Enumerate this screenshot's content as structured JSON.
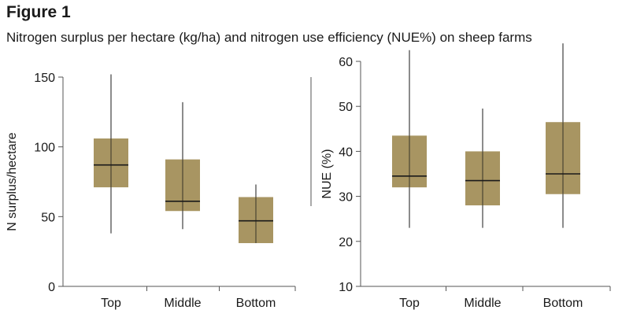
{
  "figure": {
    "title": "Figure 1",
    "subtitle": "Nitrogen surplus per hectare (kg/ha) and nitrogen use efficiency (NUE%) on sheep farms"
  },
  "colors": {
    "box": "#a89562",
    "line": "#1a1a1a",
    "axis": "#555555"
  },
  "chart_data": [
    {
      "type": "boxplot",
      "title": "",
      "xlabel": "",
      "ylabel": "N surplus/hectare",
      "ylim": [
        0,
        150
      ],
      "yticks": [
        0,
        50,
        100,
        150
      ],
      "categories": [
        "Top",
        "Middle",
        "Bottom"
      ],
      "boxes": [
        {
          "label": "Top",
          "min": 38,
          "q1": 71,
          "median": 87,
          "q3": 106,
          "max": 152
        },
        {
          "label": "Middle",
          "min": 41,
          "q1": 54,
          "median": 61,
          "q3": 91,
          "max": 132
        },
        {
          "label": "Bottom",
          "min": 31,
          "q1": 31,
          "median": 47,
          "q3": 64,
          "max": 73
        }
      ]
    },
    {
      "type": "boxplot",
      "title": "",
      "xlabel": "",
      "ylabel": "NUE (%)",
      "ylim": [
        10,
        60
      ],
      "yticks": [
        10,
        20,
        30,
        40,
        50,
        60
      ],
      "categories": [
        "Top",
        "Middle",
        "Bottom"
      ],
      "boxes": [
        {
          "label": "Top",
          "min": 23,
          "q1": 32,
          "median": 34.5,
          "q3": 43.5,
          "max": 62.5
        },
        {
          "label": "Middle",
          "min": 23,
          "q1": 28,
          "median": 33.5,
          "q3": 40,
          "max": 49.5
        },
        {
          "label": "Bottom",
          "min": 23,
          "q1": 30.5,
          "median": 35,
          "q3": 46.5,
          "max": 64
        }
      ]
    }
  ]
}
